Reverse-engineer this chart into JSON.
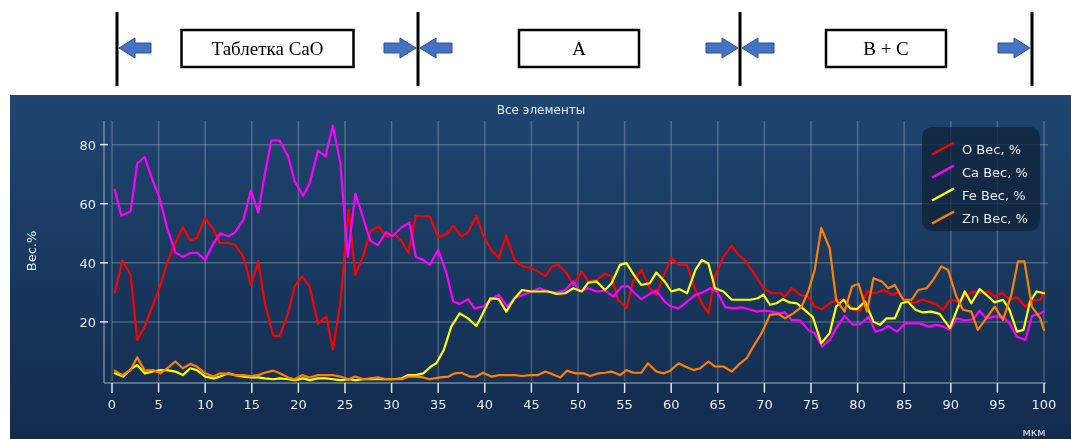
{
  "chart_data": {
    "type": "line",
    "title": "Все элементы",
    "xlabel": "мкм",
    "ylabel": "Вес.%",
    "xlim": [
      0,
      100
    ],
    "ylim": [
      0,
      88
    ],
    "xticks": [
      0,
      5,
      10,
      15,
      20,
      25,
      30,
      35,
      40,
      45,
      50,
      55,
      60,
      65,
      70,
      75,
      80,
      85,
      90,
      95,
      100
    ],
    "yticks": [
      20,
      40,
      60,
      80
    ],
    "grid": true,
    "legend": "top right",
    "marker": "none",
    "line_style": "solid",
    "annotations": [
      "Таблетка CaO",
      "A",
      "B + C"
    ],
    "series": [
      {
        "name": "O Вес, %",
        "color": "#ff0000",
        "x": [
          0.3,
          1.1,
          2,
          2.7,
          3.5,
          4.4,
          5.2,
          5.9,
          6.8,
          7.6,
          8.4,
          9.1,
          10,
          10.9,
          11.6,
          12.5,
          13.2,
          14.1,
          14.9,
          15.7,
          16.4,
          17.3,
          18,
          18.9,
          19.6,
          20.4,
          21.2,
          22.1,
          23,
          23.7,
          24.5,
          25.4,
          26.1,
          27,
          27.7,
          28.6,
          29.5,
          30.2,
          31.1,
          31.8,
          32.6,
          33.4,
          34.1,
          35,
          35.9,
          36.6,
          37.5,
          38.2,
          39.1,
          39.8,
          40.7,
          41.5,
          42.3,
          43.2,
          44.1,
          45,
          45.7,
          46.5,
          47.2,
          47.9,
          48.8,
          49.5,
          50.4,
          51.1,
          52,
          52.9,
          53.6,
          54.3,
          55.2,
          55.9,
          56.8,
          57.7,
          58.4,
          59.3,
          60,
          60.8,
          61.7,
          62.6,
          63.3,
          64,
          64.7,
          65.6,
          66.5,
          67.2,
          67.9,
          69,
          69.9,
          70.8,
          71.7,
          72.2,
          72.9,
          73.8,
          74.7,
          75.4,
          76.2,
          77,
          77.9,
          78.6,
          79.5,
          80.3,
          81,
          81.9,
          82.8,
          83.7,
          84.4,
          85.3,
          86,
          86.9,
          87.6,
          88.5,
          89.2,
          89.9,
          90.8,
          91.5,
          92.4,
          93.1,
          94,
          94.7,
          95.5,
          96.3,
          97.1,
          98,
          98.7,
          99.6,
          100
        ],
        "values": [
          29.9,
          40.8,
          35.9,
          13.9,
          18.4,
          25.8,
          32.5,
          39.9,
          46.7,
          52.1,
          47.6,
          48.4,
          55.1,
          51.2,
          46.7,
          46.7,
          46.1,
          42.1,
          32.5,
          40.5,
          26.3,
          15.3,
          15.3,
          22.9,
          32,
          35.4,
          32,
          19.5,
          21.8,
          10.7,
          26.3,
          58,
          35.9,
          42.7,
          50.6,
          52.3,
          48.9,
          50,
          47.2,
          43.3,
          55.9,
          55.7,
          55.7,
          48.7,
          49.8,
          52.5,
          48.9,
          50.3,
          55.9,
          49.5,
          44.4,
          41.6,
          49.2,
          41,
          38.8,
          38.2,
          37.1,
          35.4,
          38.8,
          39.3,
          36.5,
          32.5,
          37.1,
          33.7,
          34.2,
          36.3,
          35.4,
          27.5,
          24.6,
          33.7,
          37.6,
          31.4,
          29.2,
          36.5,
          41.6,
          39.3,
          39.3,
          30.8,
          26.3,
          22.9,
          35.4,
          42.1,
          45.8,
          42.7,
          41,
          35.9,
          31.4,
          29.7,
          29.7,
          28.6,
          31.4,
          29.2,
          28.6,
          25.2,
          24.3,
          26.3,
          27.5,
          27.5,
          24.1,
          24.1,
          30.3,
          29.7,
          30.8,
          29.2,
          29.9,
          26.9,
          26.3,
          27.5,
          26.9,
          25.8,
          24.1,
          27.5,
          26.9,
          28.6,
          30.3,
          29.7,
          30.3,
          28.6,
          29.9,
          27.5,
          28.4,
          25.2,
          27.2,
          27.5,
          30.3
        ]
      },
      {
        "name": "Ca Вес, %",
        "color": "#ff00ff",
        "x": [
          0.3,
          1,
          2,
          2.7,
          3.5,
          4.4,
          5.1,
          5.9,
          6.8,
          7.6,
          8.4,
          9.1,
          10,
          10.9,
          11.6,
          12.5,
          13.2,
          14.1,
          14.9,
          15.7,
          16.4,
          17.1,
          18,
          18.9,
          19.6,
          20.5,
          21.2,
          22.1,
          22.9,
          23.7,
          24.5,
          25.3,
          26.1,
          26.9,
          27.7,
          28.5,
          29.4,
          30.1,
          31,
          31.9,
          32.6,
          33.4,
          34.1,
          35,
          35.9,
          36.6,
          37.3,
          38.2,
          38.9,
          39.8,
          40.7,
          41.5,
          42.4,
          43.2,
          44.1,
          45,
          45.9,
          46.8,
          47.7,
          48.6,
          49.5,
          50.2,
          51.1,
          52,
          52.9,
          53.8,
          54.7,
          55.4,
          56.1,
          56.8,
          57.7,
          58.4,
          59.3,
          60,
          60.8,
          61.7,
          62.6,
          63.3,
          64.2,
          64.9,
          65.8,
          66.7,
          67.6,
          68.5,
          69.2,
          69.9,
          70.8,
          71.7,
          72.2,
          72.9,
          73.8,
          74.7,
          75.4,
          76.2,
          77,
          77.7,
          78.6,
          79.5,
          80.3,
          81.2,
          81.9,
          82.6,
          83.3,
          84.2,
          85.1,
          86,
          86.7,
          87.6,
          88.5,
          89.2,
          89.9,
          90.6,
          91.5,
          92.4,
          93.1,
          93.8,
          94.7,
          95.6,
          96.3,
          97.1,
          98,
          98.7,
          99.6,
          100
        ],
        "values": [
          64.7,
          56,
          57.4,
          73.6,
          75.8,
          67.6,
          62,
          52,
          43.5,
          42,
          43.3,
          43.5,
          41,
          46.7,
          50,
          49,
          50.3,
          54.6,
          64.5,
          57,
          70,
          81.4,
          81.4,
          76,
          67.6,
          62.7,
          66.8,
          78,
          76,
          86.4,
          73.8,
          42,
          63.4,
          55.7,
          47.6,
          46,
          50.3,
          49,
          51.8,
          53.7,
          42,
          41,
          39.3,
          44.4,
          36.5,
          26.9,
          26.1,
          27.7,
          24.6,
          25.2,
          27.5,
          29.2,
          25.2,
          28,
          29.2,
          30.3,
          31.4,
          30.3,
          29.9,
          30.8,
          33.7,
          30.3,
          31.4,
          30.3,
          30.6,
          28.6,
          32,
          32,
          29.7,
          27.7,
          29.5,
          30.6,
          26.9,
          25.2,
          24.6,
          26.9,
          29.2,
          29.9,
          31.4,
          30.3,
          25,
          24.6,
          24.9,
          24.1,
          23.5,
          23.8,
          23.5,
          22.9,
          23.2,
          20.7,
          20.5,
          17.3,
          16.2,
          11.6,
          13.9,
          17.9,
          22,
          19,
          19.3,
          21.8,
          16.7,
          17.3,
          18.6,
          16.7,
          19.5,
          19.5,
          19.5,
          18.4,
          19,
          18.4,
          17.3,
          21.2,
          20.5,
          20.9,
          23.8,
          21.2,
          21.8,
          21.8,
          19.5,
          15,
          13.9,
          22,
          22.9,
          23.5
        ]
      },
      {
        "name": "Fe Вес, %",
        "color": "#ffff00",
        "x": [
          0.3,
          1.2,
          2,
          2.7,
          3.5,
          4.4,
          5.2,
          5.9,
          6.8,
          7.6,
          8.4,
          9.1,
          10,
          10.9,
          11.6,
          12.5,
          13.2,
          14.1,
          14.9,
          15.7,
          16.4,
          17.3,
          18,
          18.9,
          19.6,
          20.5,
          21.2,
          22.1,
          23,
          23.7,
          24.5,
          25.4,
          26.1,
          27,
          27.7,
          28.6,
          29.5,
          30.2,
          31.1,
          31.8,
          32.6,
          33.4,
          33.8,
          34.3,
          34.8,
          35.6,
          36.4,
          37.3,
          38.2,
          39.1,
          39.8,
          40.6,
          41.5,
          42.3,
          43.2,
          44,
          45,
          45.9,
          46.8,
          47.7,
          48.6,
          49.5,
          50.4,
          51.1,
          52,
          52.9,
          53.6,
          54.5,
          55.2,
          56.1,
          56.8,
          57.7,
          58.4,
          59.3,
          60,
          60.9,
          61.7,
          62.6,
          63.3,
          64,
          64.7,
          65.6,
          66.5,
          67.4,
          68.5,
          69.3,
          69.9,
          70.6,
          71.3,
          72,
          72.7,
          73.5,
          74.4,
          75.2,
          76.1,
          77,
          77.7,
          78.5,
          79.2,
          79.9,
          80.8,
          81.7,
          82.4,
          83.1,
          84,
          84.7,
          85.4,
          86.2,
          87,
          87.9,
          88.8,
          89.9,
          90.8,
          91.5,
          92.2,
          93.1,
          93.8,
          94.7,
          95.6,
          96.3,
          97.1,
          97.8,
          98.5,
          99.2,
          100
        ],
        "values": [
          2.6,
          1.5,
          4,
          5.4,
          2.6,
          3.2,
          3.7,
          3.7,
          3.2,
          2,
          4.3,
          3.7,
          1.5,
          0.9,
          1.5,
          2.6,
          2,
          1.5,
          1.2,
          1.2,
          0.9,
          0.6,
          0.9,
          0.6,
          0.3,
          0.9,
          0.3,
          0.9,
          0.9,
          0.6,
          0.3,
          0.6,
          0.3,
          0.6,
          0.6,
          0.6,
          0.6,
          0.6,
          0.9,
          2,
          2,
          2.6,
          3.7,
          5.1,
          6,
          10.5,
          18.4,
          22.9,
          21.2,
          18.6,
          22.9,
          28,
          27.7,
          23.5,
          28,
          30.8,
          30.3,
          30.3,
          30.3,
          29.5,
          29.7,
          31.4,
          30.3,
          33.3,
          33.7,
          30.8,
          33.1,
          39.3,
          39.9,
          35.4,
          32.5,
          33.1,
          36.7,
          33.7,
          30.3,
          31.1,
          29.7,
          37.6,
          41,
          39.7,
          31.4,
          30.3,
          27.5,
          27.5,
          27.5,
          28,
          29.2,
          25.8,
          26.3,
          27.7,
          26.6,
          26.3,
          23.8,
          21.6,
          12.8,
          16.2,
          25.2,
          27.5,
          24.6,
          24.3,
          26.9,
          20.1,
          19,
          21.2,
          21.2,
          26.3,
          26.9,
          24.1,
          23.2,
          23.5,
          22.7,
          17.9,
          25.2,
          30.3,
          26.3,
          31.1,
          29.2,
          26.6,
          27.5,
          24.1,
          16.7,
          17.3,
          26.9,
          30.3,
          29.7
        ]
      },
      {
        "name": "Zn Вес, %",
        "color": "#ff8000",
        "x": [
          0.3,
          1.1,
          2,
          2.7,
          3.5,
          4.4,
          5.2,
          5.9,
          6.8,
          7.6,
          8.4,
          9.1,
          10,
          10.9,
          11.6,
          12.5,
          13.2,
          14.1,
          14.9,
          15.7,
          16.4,
          17.3,
          18,
          18.9,
          19.6,
          20.4,
          21.2,
          22.1,
          23,
          23.7,
          24.5,
          25.4,
          26.1,
          27,
          27.7,
          28.6,
          29.5,
          30.2,
          31.1,
          31.8,
          32.6,
          33.4,
          34.1,
          35.2,
          36.1,
          36.8,
          37.5,
          38.4,
          39.1,
          39.8,
          40.7,
          41.5,
          42.4,
          43.2,
          44,
          44.9,
          45.7,
          46.5,
          47.2,
          48.1,
          48.8,
          49.7,
          50.6,
          51.3,
          52.2,
          52.9,
          53.6,
          54.5,
          55.2,
          55.9,
          56.8,
          57.5,
          58.4,
          59.2,
          59.9,
          60.8,
          61.5,
          62.4,
          63.1,
          64,
          64.7,
          65.6,
          66.5,
          67.4,
          68.1,
          68.8,
          69.7,
          70.6,
          71.5,
          72.2,
          73.1,
          74,
          74.7,
          75.4,
          76.1,
          77,
          77.7,
          78.6,
          79.4,
          80.1,
          81,
          81.7,
          82.6,
          83.3,
          84,
          84.9,
          85.8,
          86.5,
          87.4,
          88.1,
          89,
          89.7,
          90.6,
          91.3,
          92.2,
          92.9,
          93.8,
          94.7,
          95.6,
          96.5,
          97.2,
          97.9,
          98.7,
          99.6,
          100
        ],
        "values": [
          3.5,
          2,
          3.7,
          8,
          3.5,
          3.7,
          2.6,
          4.3,
          6.6,
          4.3,
          5.8,
          4.9,
          2.6,
          1.5,
          2.6,
          2.4,
          2,
          2,
          1.7,
          2,
          2.8,
          3.5,
          2.6,
          1.2,
          0.6,
          2,
          1.2,
          2,
          2,
          2,
          1.5,
          0.6,
          1.5,
          0.6,
          0.9,
          1.2,
          0.6,
          0.6,
          0.6,
          1.5,
          1.5,
          1.2,
          0.6,
          1.2,
          1.5,
          2.6,
          2.8,
          1.5,
          1.5,
          2.8,
          1.5,
          2,
          2,
          2,
          1.7,
          2,
          2,
          3.2,
          2.4,
          1.2,
          3.5,
          2.6,
          2.6,
          1.7,
          2.6,
          2.8,
          3.2,
          2,
          3.7,
          2.8,
          2.8,
          6,
          3.2,
          2.6,
          3.5,
          6,
          4.9,
          3.7,
          4.3,
          6.6,
          4.9,
          4.9,
          3.2,
          6,
          7.7,
          11.6,
          16.2,
          22.4,
          22.7,
          21.2,
          22.9,
          25.2,
          30.3,
          37.6,
          51.8,
          45,
          27.5,
          23.5,
          32,
          32.9,
          23.5,
          34.8,
          33.7,
          31.4,
          32.5,
          27.5,
          27.5,
          30.8,
          31.4,
          34.2,
          38.8,
          37.6,
          28.6,
          24.1,
          23.5,
          17.3,
          21.2,
          25.2,
          20.7,
          29.2,
          40.5,
          40.5,
          25.2,
          21.2,
          17.3
        ]
      }
    ]
  }
}
